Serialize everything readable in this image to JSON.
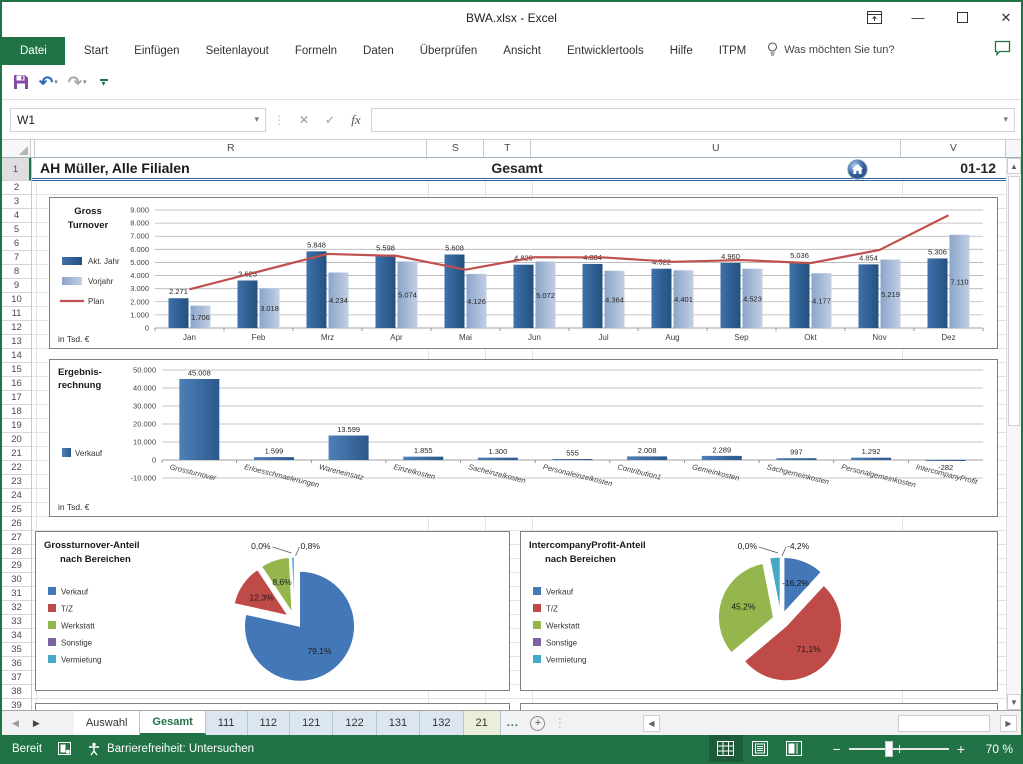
{
  "window": {
    "title": "BWA.xlsx  -  Excel",
    "controls": {
      "ribbon_display": "ribbon-display-options",
      "minimize": "minimize",
      "maximize": "maximize",
      "close": "close"
    }
  },
  "ribbon": {
    "tabs": [
      "Datei",
      "Start",
      "Einfügen",
      "Seitenlayout",
      "Formeln",
      "Daten",
      "Überprüfen",
      "Ansicht",
      "Entwicklertools",
      "Hilfe",
      "ITPM"
    ],
    "active_tab": "Datei",
    "tellme": "Was möchten Sie tun?"
  },
  "formula_bar": {
    "name_box": "W1",
    "formula": ""
  },
  "grid": {
    "columns": [
      "",
      "R",
      "S",
      "T",
      "U",
      "V"
    ],
    "first_row": 1,
    "last_row": 39,
    "selected_row": 1
  },
  "report_header": {
    "left": "AH Müller, Alle Filialen",
    "center": "Gesamt",
    "right": "01-12"
  },
  "chart_data": [
    {
      "type": "bar",
      "subtype": "bar-line-combo",
      "title_lines": [
        "Gross",
        "Turnover"
      ],
      "unit_label": "in Tsd. €",
      "categories": [
        "Jan",
        "Feb",
        "Mrz",
        "Apr",
        "Mai",
        "Jun",
        "Jul",
        "Aug",
        "Sep",
        "Okt",
        "Nov",
        "Dez"
      ],
      "series": [
        {
          "name": "Akt. Jahr",
          "type": "bar",
          "color": "#2e5f95",
          "values": [
            2271,
            3625,
            5848,
            5598,
            5608,
            4829,
            4884,
            4522,
            4960,
            5036,
            4854,
            5306
          ],
          "labels": [
            "2.271",
            "3.625",
            "5.848",
            "5.598",
            "5.608",
            "4.829",
            "4.884",
            "4.522",
            "4.960",
            "5.036",
            "4.854",
            "5.306"
          ]
        },
        {
          "name": "Vorjahr",
          "type": "bar",
          "color": "#9db3d5",
          "values": [
            1706,
            3018,
            4234,
            5074,
            4126,
            5072,
            4364,
            4401,
            4523,
            4177,
            5219,
            7110
          ],
          "labels": [
            "1.706",
            "3.018",
            "4.234",
            "5.074",
            "4.126",
            "5.072",
            "4.364",
            "4.401",
            "4.523",
            "4.177",
            "5.219",
            "7.110"
          ]
        },
        {
          "name": "Plan",
          "type": "line",
          "color": "#c0504d",
          "values": [
            2950,
            4300,
            5650,
            5500,
            4450,
            5400,
            5380,
            5050,
            5180,
            4950,
            5950,
            8600
          ]
        }
      ],
      "ylim": [
        0,
        9000
      ],
      "yticks": {
        "values": [
          9000,
          8000,
          7000,
          6000,
          5000,
          4000,
          3000,
          2000,
          1000,
          0
        ],
        "labels": [
          "9.000",
          "8.000",
          "7.000",
          "6.000",
          "5.000",
          "4.000",
          "3.000",
          "2.000",
          "1.000",
          "0"
        ]
      },
      "legend_position": "left",
      "grid": true
    },
    {
      "type": "bar",
      "title_lines": [
        "Ergebnis-",
        "rechnung"
      ],
      "unit_label": "in Tsd. €",
      "categories": [
        "Grossturnover",
        "Erloesschmaelerungen",
        "Wareneinsatz",
        "Einzelkosten",
        "Sacheinzelkosten",
        "Personaleinzelkosten",
        "Contribution1",
        "Gemeinkosten",
        "Sachgemeinkosten",
        "Personalgemeinkosten",
        "IntercompanyProfit"
      ],
      "series": [
        {
          "name": "Verkauf",
          "type": "bar",
          "color": "#31639c",
          "values": [
            45008,
            1599,
            13599,
            1855,
            1300,
            555,
            2008,
            2289,
            997,
            1292,
            -282
          ],
          "labels": [
            "45.008",
            "1.599",
            "13.599",
            "1.855",
            "1.300",
            "555",
            "2.008",
            "2.289",
            "997",
            "1.292",
            "-282"
          ]
        }
      ],
      "ylim": [
        -10000,
        50000
      ],
      "yticks": {
        "values": [
          50000,
          40000,
          30000,
          20000,
          10000,
          0,
          -10000
        ],
        "labels": [
          "50.000",
          "40.000",
          "30.000",
          "20.000",
          "10.000",
          "0",
          "-10.000"
        ]
      },
      "legend_position": "left",
      "grid": true
    },
    {
      "type": "pie",
      "title_lines": [
        "Grossturnover-Anteil",
        "nach Bereichen"
      ],
      "legend": [
        "Verkauf",
        "T/Z",
        "Werkstatt",
        "Sonstige",
        "Vermietung"
      ],
      "colors": [
        "#4477b8",
        "#bf4b48",
        "#94b64d",
        "#7e62a1",
        "#45a9c8"
      ],
      "values": [
        79.1,
        12.3,
        8.6,
        0.0,
        0.8
      ],
      "labels": [
        "79,1%",
        "12,3%",
        "8,6%",
        "0,0%",
        "0,8%"
      ],
      "legend_position": "left"
    },
    {
      "type": "pie",
      "title_lines": [
        "IntercompanyProfit-Anteil",
        "nach Bereichen"
      ],
      "legend": [
        "Verkauf",
        "T/Z",
        "Werkstatt",
        "Sonstige",
        "Vermietung"
      ],
      "colors": [
        "#4477b8",
        "#bf4b48",
        "#94b64d",
        "#7e62a1",
        "#45a9c8"
      ],
      "values": [
        -16.2,
        71.1,
        45.2,
        0.0,
        -4.2
      ],
      "labels": [
        "-16,2%",
        "71,1%",
        "45,2%",
        "0,0%",
        "-4,2%"
      ],
      "legend_position": "left"
    }
  ],
  "sheet_tabs": {
    "tabs": [
      {
        "label": "Auswahl",
        "style": "white"
      },
      {
        "label": "Gesamt",
        "style": "active"
      },
      {
        "label": "111",
        "style": "blue"
      },
      {
        "label": "112",
        "style": "blue"
      },
      {
        "label": "121",
        "style": "blue"
      },
      {
        "label": "122",
        "style": "blue"
      },
      {
        "label": "131",
        "style": "blue"
      },
      {
        "label": "132",
        "style": "blue"
      },
      {
        "label": "21",
        "style": "green"
      }
    ],
    "overflow": "...",
    "add_label": "+"
  },
  "status_bar": {
    "mode": "Bereit",
    "accessibility": "Barrierefreiheit: Untersuchen",
    "zoom": "70 %"
  }
}
